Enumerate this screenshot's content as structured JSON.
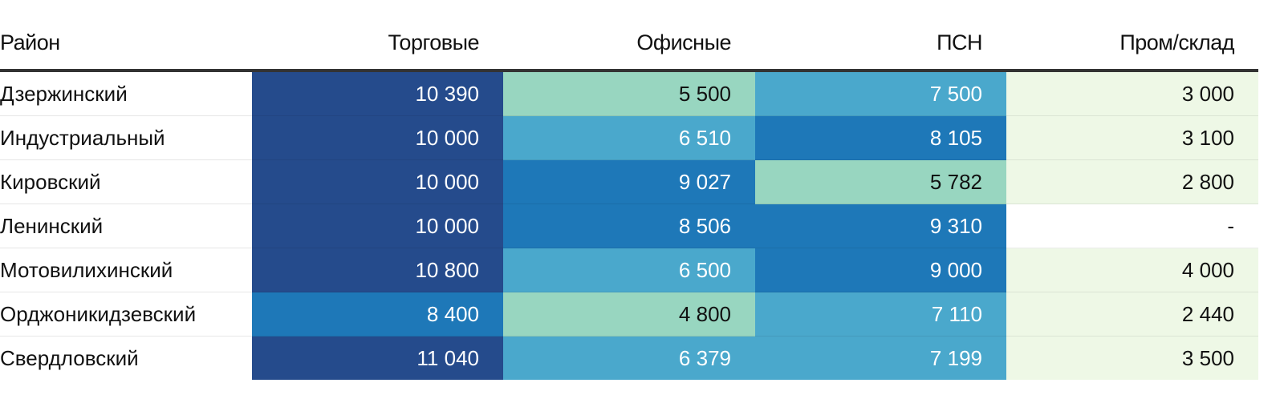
{
  "chart_data": {
    "type": "table",
    "columns": [
      "Район",
      "Торговые",
      "Офисные",
      "ПСН",
      "Пром/склад"
    ],
    "rows": [
      {
        "district": "Дзержинский",
        "cells": [
          {
            "text": "10 390",
            "value": 10390
          },
          {
            "text": "5 500",
            "value": 5500
          },
          {
            "text": "7 500",
            "value": 7500
          },
          {
            "text": "3 000",
            "value": 3000
          }
        ]
      },
      {
        "district": "Индустриальный",
        "cells": [
          {
            "text": "10 000",
            "value": 10000
          },
          {
            "text": "6 510",
            "value": 6510
          },
          {
            "text": "8 105",
            "value": 8105
          },
          {
            "text": "3 100",
            "value": 3100
          }
        ]
      },
      {
        "district": "Кировский",
        "cells": [
          {
            "text": "10 000",
            "value": 10000
          },
          {
            "text": "9 027",
            "value": 9027
          },
          {
            "text": "5 782",
            "value": 5782
          },
          {
            "text": "2 800",
            "value": 2800
          }
        ]
      },
      {
        "district": "Ленинский",
        "cells": [
          {
            "text": "10 000",
            "value": 10000
          },
          {
            "text": "8 506",
            "value": 8506
          },
          {
            "text": "9 310",
            "value": 9310
          },
          {
            "text": "-",
            "value": null
          }
        ]
      },
      {
        "district": "Мотовилихинский",
        "cells": [
          {
            "text": "10 800",
            "value": 10800
          },
          {
            "text": "6 500",
            "value": 6500
          },
          {
            "text": "9 000",
            "value": 9000
          },
          {
            "text": "4 000",
            "value": 4000
          }
        ]
      },
      {
        "district": "Орджоникидзевский",
        "cells": [
          {
            "text": "8 400",
            "value": 8400
          },
          {
            "text": "4 800",
            "value": 4800
          },
          {
            "text": "7 110",
            "value": 7110
          },
          {
            "text": "2 440",
            "value": 2440
          }
        ]
      },
      {
        "district": "Свердловский",
        "cells": [
          {
            "text": "11 040",
            "value": 11040
          },
          {
            "text": "6 379",
            "value": 6379
          },
          {
            "text": "7 199",
            "value": 7199
          },
          {
            "text": "3 500",
            "value": 3500
          }
        ]
      }
    ],
    "color_scale": {
      "bins": [
        {
          "min": 0,
          "max": 4500,
          "bg": "#eef8e6",
          "fg": "#111111"
        },
        {
          "min": 4500,
          "max": 6000,
          "bg": "#98d6c0",
          "fg": "#111111"
        },
        {
          "min": 6000,
          "max": 8000,
          "bg": "#4aa8cc",
          "fg": "#ffffff"
        },
        {
          "min": 8000,
          "max": 10000,
          "bg": "#1e78b8",
          "fg": "#ffffff"
        },
        {
          "min": 10000,
          "max": 99999,
          "bg": "#254b8c",
          "fg": "#ffffff"
        }
      ],
      "empty": {
        "bg": "#ffffff",
        "fg": "#111111"
      }
    }
  }
}
